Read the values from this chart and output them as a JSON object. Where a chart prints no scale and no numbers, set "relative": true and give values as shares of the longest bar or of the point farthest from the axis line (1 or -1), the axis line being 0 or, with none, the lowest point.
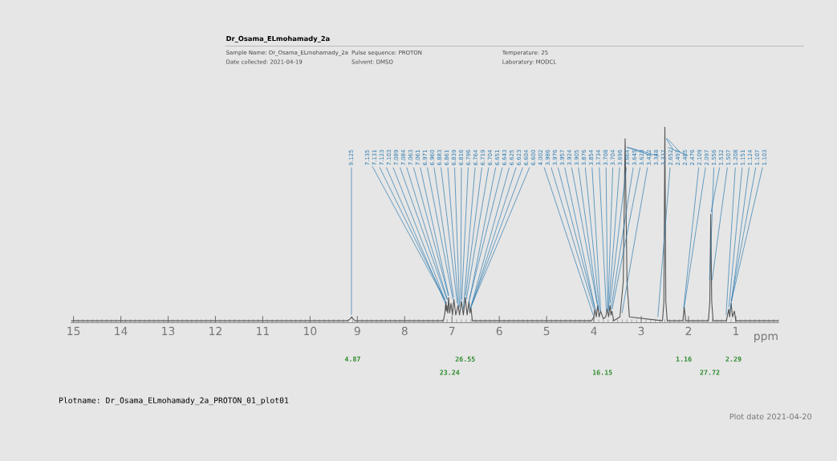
{
  "chart_data": {
    "type": "line",
    "relative": true,
    "title": "Dr_Osama_ELmohamady_2a",
    "xlabel": "ppm",
    "xlim": [
      15.05,
      0.1
    ],
    "xticks": [
      15,
      14,
      13,
      12,
      11,
      10,
      9,
      8,
      7,
      6,
      5,
      4,
      3,
      2,
      1
    ],
    "grid": false,
    "tick_labels": "x",
    "series": [
      {
        "color": "#555555",
        "x": [
          15.05,
          9.2,
          9.15,
          9.12,
          9.09,
          9.05,
          7.18,
          7.15,
          7.13,
          7.12,
          7.11,
          7.09,
          7.07,
          7.05,
          7.02,
          6.99,
          6.96,
          6.92,
          6.87,
          6.84,
          6.8,
          6.76,
          6.72,
          6.68,
          6.64,
          6.62,
          6.6,
          6.57,
          4.05,
          4.0,
          3.98,
          3.95,
          3.92,
          3.89,
          3.86,
          3.8,
          3.75,
          3.72,
          3.69,
          3.66,
          3.64,
          3.62,
          3.58,
          3.45,
          3.38,
          3.34,
          3.3,
          3.25,
          2.55,
          2.52,
          2.5,
          2.48,
          2.45,
          2.12,
          2.09,
          2.06,
          1.58,
          1.55,
          1.53,
          1.51,
          1.48,
          1.2,
          1.15,
          1.13,
          1.1,
          1.07,
          1.03,
          1.0,
          0.1
        ],
        "values": [
          0,
          0,
          0.01,
          0.02,
          0.01,
          0,
          0,
          0.04,
          0.1,
          0.05,
          0.08,
          0.04,
          0.12,
          0.04,
          0.09,
          0.03,
          0.11,
          0.03,
          0.08,
          0.03,
          0.1,
          0.03,
          0.12,
          0.03,
          0.1,
          0.04,
          0.07,
          0,
          0,
          0.02,
          0.06,
          0.02,
          0.08,
          0.02,
          0.05,
          0.01,
          0.02,
          0.06,
          0.02,
          0.08,
          0.03,
          0.05,
          0,
          0.02,
          0.2,
          0.94,
          0.2,
          0.02,
          0,
          0.1,
          1.0,
          0.1,
          0,
          0,
          0.07,
          0,
          0,
          0.1,
          0.55,
          0.1,
          0,
          0,
          0.06,
          0.02,
          0.09,
          0.02,
          0.05,
          0,
          0
        ]
      }
    ],
    "annotations": [
      "Sample Name: Dr_Osama_ELmohamady_2a",
      "Date collected: 2021-04-19",
      "Pulse sequence: PROTON",
      "Solvent: DMSO",
      "Temperature: 25",
      "Laboratory: MODCL",
      "Plotname: Dr_Osama_ELmohamady_2a_PROTON_01_plot01",
      "Plot date 2021-04-20",
      {
        "text": "9.125",
        "x": 9.125,
        "y": 0.02
      },
      {
        "text": "7.135",
        "x": 7.135,
        "y": 0.1
      },
      {
        "text": "7.131",
        "x": 7.131,
        "y": 0.1
      },
      {
        "text": "7.123",
        "x": 7.123,
        "y": 0.08
      },
      {
        "text": "7.103",
        "x": 7.103,
        "y": 0.08
      },
      {
        "text": "7.089",
        "x": 7.089,
        "y": 0.1
      },
      {
        "text": "7.084",
        "x": 7.084,
        "y": 0.1
      },
      {
        "text": "7.063",
        "x": 7.063,
        "y": 0.12
      },
      {
        "text": "7.061",
        "x": 7.061,
        "y": 0.12
      },
      {
        "text": "6.971",
        "x": 6.971,
        "y": 0.1
      },
      {
        "text": "6.960",
        "x": 6.96,
        "y": 0.11
      },
      {
        "text": "6.883",
        "x": 6.883,
        "y": 0.08
      },
      {
        "text": "6.861",
        "x": 6.861,
        "y": 0.07
      },
      {
        "text": "6.839",
        "x": 6.839,
        "y": 0.06
      },
      {
        "text": "6.816",
        "x": 6.816,
        "y": 0.08
      },
      {
        "text": "6.796",
        "x": 6.796,
        "y": 0.1
      },
      {
        "text": "6.764",
        "x": 6.764,
        "y": 0.05
      },
      {
        "text": "6.719",
        "x": 6.719,
        "y": 0.12
      },
      {
        "text": "6.704",
        "x": 6.704,
        "y": 0.1
      },
      {
        "text": "6.651",
        "x": 6.651,
        "y": 0.08
      },
      {
        "text": "6.643",
        "x": 6.643,
        "y": 0.1
      },
      {
        "text": "6.625",
        "x": 6.625,
        "y": 0.05
      },
      {
        "text": "6.623",
        "x": 6.623,
        "y": 0.05
      },
      {
        "text": "6.604",
        "x": 6.604,
        "y": 0.07
      },
      {
        "text": "6.600",
        "x": 6.6,
        "y": 0.07
      },
      {
        "text": "4.002",
        "x": 4.002,
        "y": 0.02
      },
      {
        "text": "3.986",
        "x": 3.986,
        "y": 0.05
      },
      {
        "text": "3.976",
        "x": 3.976,
        "y": 0.06
      },
      {
        "text": "3.957",
        "x": 3.957,
        "y": 0.04
      },
      {
        "text": "3.924",
        "x": 3.924,
        "y": 0.08
      },
      {
        "text": "3.905",
        "x": 3.905,
        "y": 0.05
      },
      {
        "text": "3.876",
        "x": 3.876,
        "y": 0.04
      },
      {
        "text": "3.854",
        "x": 3.854,
        "y": 0.04
      },
      {
        "text": "3.734",
        "x": 3.734,
        "y": 0.04
      },
      {
        "text": "3.708",
        "x": 3.708,
        "y": 0.05
      },
      {
        "text": "3.704",
        "x": 3.704,
        "y": 0.05
      },
      {
        "text": "3.696",
        "x": 3.696,
        "y": 0.04
      },
      {
        "text": "3.664",
        "x": 3.664,
        "y": 0.08
      },
      {
        "text": "3.645",
        "x": 3.645,
        "y": 0.05
      },
      {
        "text": "3.623",
        "x": 3.623,
        "y": 0.05
      },
      {
        "text": "3.412",
        "x": 3.412,
        "y": 0.03
      },
      {
        "text": "3.348",
        "x": 3.348,
        "y": 0.9
      },
      {
        "text": "3.337",
        "x": 3.337,
        "y": 0.9
      },
      {
        "text": "2.652",
        "x": 2.652,
        "y": 0.01
      },
      {
        "text": "2.497",
        "x": 2.497,
        "y": 0.95
      },
      {
        "text": "2.485",
        "x": 2.485,
        "y": 0.95
      },
      {
        "text": "2.476",
        "x": 2.476,
        "y": 0.9
      },
      {
        "text": "2.109",
        "x": 2.109,
        "y": 0.05
      },
      {
        "text": "2.097",
        "x": 2.097,
        "y": 0.06
      },
      {
        "text": "1.556",
        "x": 1.556,
        "y": 0.2
      },
      {
        "text": "1.532",
        "x": 1.532,
        "y": 0.55
      },
      {
        "text": "1.507",
        "x": 1.507,
        "y": 0.2
      },
      {
        "text": "1.208",
        "x": 1.208,
        "y": 0.02
      },
      {
        "text": "1.151",
        "x": 1.151,
        "y": 0.06
      },
      {
        "text": "1.124",
        "x": 1.124,
        "y": 0.04
      },
      {
        "text": "1.107",
        "x": 1.107,
        "y": 0.09
      },
      {
        "text": "1.103",
        "x": 1.103,
        "y": 0.09
      },
      "4.87",
      "23.24",
      "26.55",
      "16.15",
      "1.16",
      "27.72",
      "2.29"
    ]
  }
}
